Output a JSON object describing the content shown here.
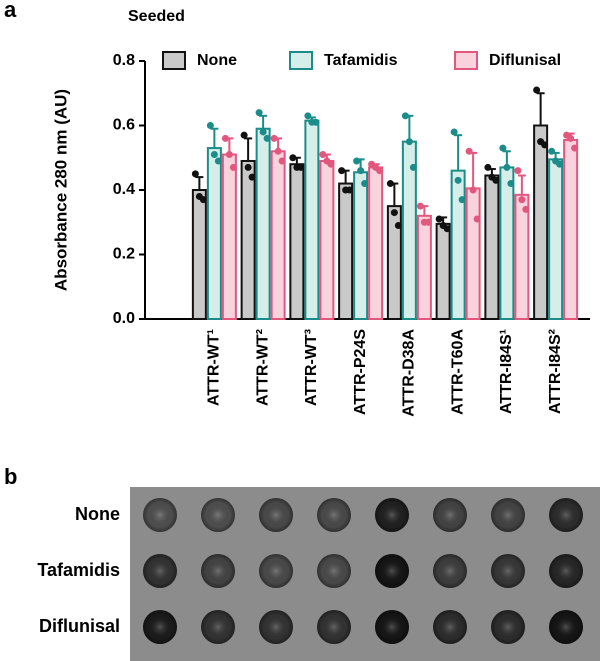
{
  "chart_data": {
    "type": "bar",
    "panel_label": "a",
    "title": "Seeded",
    "ylabel": "Absorbance 280 nm (AU)",
    "categories": [
      "ATTR-WT¹",
      "ATTR-WT²",
      "ATTR-WT³",
      "ATTR-P24S",
      "ATTR-D38A",
      "ATTR-T60A",
      "ATTR-I84S¹",
      "ATTR-I84S²"
    ],
    "ylim": [
      0,
      0.8
    ],
    "yticks": [
      {
        "value": 0,
        "label": "0.0"
      },
      0.2,
      0.4,
      0.6,
      0.8
    ],
    "legend_loc": "upper right",
    "series": [
      {
        "name": "None",
        "color": "#111111",
        "fill": "#c9c9c9",
        "values": [
          0.4,
          0.49,
          0.48,
          0.42,
          0.35,
          0.295,
          0.445,
          0.6
        ],
        "errors": [
          0.04,
          0.07,
          0.02,
          0.04,
          0.07,
          0.02,
          0.02,
          0.1
        ],
        "points": [
          [
            0.45,
            0.38,
            0.37
          ],
          [
            0.57,
            0.47,
            0.44
          ],
          [
            0.5,
            0.47,
            0.47
          ],
          [
            0.46,
            0.4,
            0.4
          ],
          [
            0.42,
            0.33,
            0.29
          ],
          [
            0.31,
            0.29,
            0.28
          ],
          [
            0.47,
            0.44,
            0.43
          ],
          [
            0.71,
            0.55,
            0.54
          ]
        ]
      },
      {
        "name": "Tafamidis",
        "color": "#1b8c89",
        "fill": "#d5eeea",
        "values": [
          0.53,
          0.59,
          0.615,
          0.455,
          0.55,
          0.46,
          0.47,
          0.495
        ],
        "errors": [
          0.06,
          0.04,
          0.01,
          0.04,
          0.08,
          0.11,
          0.05,
          0.02
        ],
        "points": [
          [
            0.6,
            0.51,
            0.49
          ],
          [
            0.64,
            0.58,
            0.56
          ],
          [
            0.63,
            0.61,
            0.61
          ],
          [
            0.49,
            0.46,
            0.42
          ],
          [
            0.63,
            0.55,
            0.47
          ],
          [
            0.58,
            0.43,
            0.37
          ],
          [
            0.53,
            0.47,
            0.42
          ],
          [
            0.52,
            0.49,
            0.48
          ]
        ]
      },
      {
        "name": "Diflunisal",
        "color": "#e2577e",
        "fill": "#f8d2dc",
        "values": [
          0.51,
          0.52,
          0.49,
          0.47,
          0.32,
          0.405,
          0.385,
          0.555
        ],
        "errors": [
          0.05,
          0.04,
          0.02,
          0.01,
          0.03,
          0.11,
          0.06,
          0.02
        ],
        "points": [
          [
            0.56,
            0.51,
            0.47
          ],
          [
            0.56,
            0.52,
            0.49
          ],
          [
            0.51,
            0.49,
            0.48
          ],
          [
            0.48,
            0.47,
            0.46
          ],
          [
            0.35,
            0.3,
            0.3
          ],
          [
            0.52,
            0.4,
            0.31
          ],
          [
            0.46,
            0.37,
            0.34
          ],
          [
            0.57,
            0.56,
            0.53
          ]
        ]
      }
    ]
  },
  "blot": {
    "panel_label": "b",
    "rows": [
      "None",
      "Tafamidis",
      "Diflunisal"
    ]
  }
}
